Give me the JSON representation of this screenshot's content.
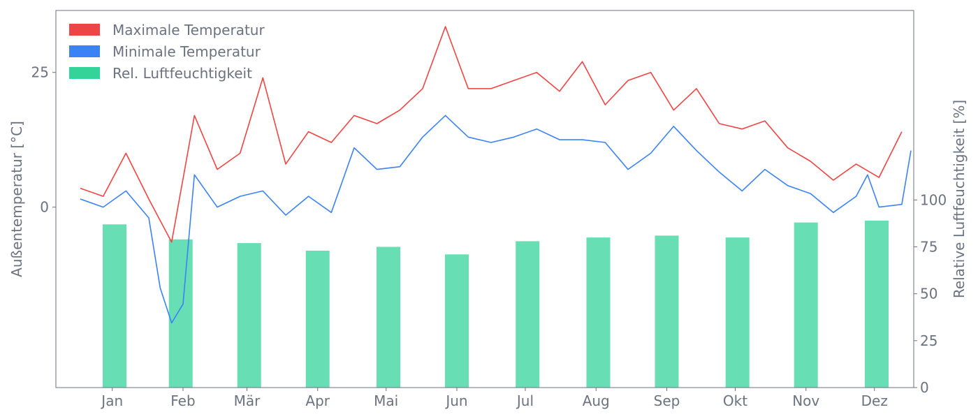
{
  "chart_data": {
    "type": "line",
    "x_type": "date",
    "x_range": [
      "2023-01-01",
      "2023-12-31"
    ],
    "month_ticks": [
      "Jan",
      "Feb",
      "Mär",
      "Apr",
      "Mai",
      "Jun",
      "Jul",
      "Aug",
      "Sep",
      "Okt",
      "Nov",
      "Dez"
    ],
    "ylabel_left": "Außentemperatur [°C]",
    "ylabel_right": "Relative Luftfeuchtigkeit [%]",
    "ylim_left": [
      -33.5,
      36.5
    ],
    "yticks_left": [
      0,
      25
    ],
    "ylim_right": [
      0,
      201
    ],
    "yticks_right": [
      0,
      25,
      50,
      75,
      100
    ],
    "grid": false,
    "legend_position": "top-left",
    "series": [
      {
        "name": "Maximale Temperatur",
        "kind": "line",
        "color": "#ef4444",
        "x": [
          "2023-01-01",
          "2023-01-11",
          "2023-01-21",
          "2023-01-31",
          "2023-02-10",
          "2023-02-20",
          "2023-03-02",
          "2023-03-12",
          "2023-03-22",
          "2023-04-01",
          "2023-04-11",
          "2023-04-21",
          "2023-05-01",
          "2023-05-11",
          "2023-05-21",
          "2023-05-31",
          "2023-06-10",
          "2023-06-20",
          "2023-06-30",
          "2023-07-10",
          "2023-07-20",
          "2023-07-30",
          "2023-08-09",
          "2023-08-19",
          "2023-08-29",
          "2023-09-08",
          "2023-09-18",
          "2023-09-28",
          "2023-10-08",
          "2023-10-18",
          "2023-10-28",
          "2023-11-07",
          "2023-11-17",
          "2023-11-27",
          "2023-12-07",
          "2023-12-17",
          "2023-12-27"
        ],
        "values": [
          3.5,
          2.0,
          10.0,
          1.5,
          -6.5,
          17.0,
          7.0,
          10.0,
          24.0,
          8.0,
          14.0,
          12.0,
          17.0,
          15.5,
          18.0,
          22.0,
          33.5,
          22.0,
          22.0,
          23.5,
          25.0,
          21.5,
          27.0,
          19.0,
          23.5,
          25.0,
          18.0,
          22.0,
          15.5,
          14.5,
          16.0,
          11.0,
          8.5,
          5.0,
          8.0,
          5.5,
          14.0
        ]
      },
      {
        "name": "Minimale Temperatur",
        "kind": "line",
        "color": "#3b82f6",
        "x": [
          "2023-01-01",
          "2023-01-11",
          "2023-01-21",
          "2023-01-31",
          "2023-02-05",
          "2023-02-10",
          "2023-02-15",
          "2023-02-20",
          "2023-03-02",
          "2023-03-12",
          "2023-03-22",
          "2023-04-01",
          "2023-04-11",
          "2023-04-21",
          "2023-05-01",
          "2023-05-11",
          "2023-05-21",
          "2023-05-31",
          "2023-06-10",
          "2023-06-20",
          "2023-06-30",
          "2023-07-10",
          "2023-07-20",
          "2023-07-30",
          "2023-08-09",
          "2023-08-19",
          "2023-08-29",
          "2023-09-08",
          "2023-09-18",
          "2023-09-28",
          "2023-10-08",
          "2023-10-18",
          "2023-10-28",
          "2023-11-07",
          "2023-11-17",
          "2023-11-27",
          "2023-12-07",
          "2023-12-12",
          "2023-12-17",
          "2023-12-27",
          "2023-12-31"
        ],
        "values": [
          1.5,
          0.0,
          3.0,
          -2.0,
          -15.0,
          -21.5,
          -18.0,
          6.0,
          0.0,
          2.0,
          3.0,
          -1.5,
          2.0,
          -1.0,
          11.0,
          7.0,
          7.5,
          13.0,
          17.0,
          13.0,
          12.0,
          13.0,
          14.5,
          12.5,
          12.5,
          12.0,
          7.0,
          10.0,
          15.0,
          10.5,
          6.5,
          3.0,
          7.0,
          4.0,
          2.5,
          -1.0,
          2.0,
          6.0,
          0.0,
          0.5,
          10.5
        ]
      },
      {
        "name": "Rel. Luftfeuchtigkeit",
        "kind": "bar",
        "color": "#34d399",
        "x": [
          "2023-01-16",
          "2023-02-14",
          "2023-03-16",
          "2023-04-15",
          "2023-05-16",
          "2023-06-15",
          "2023-07-16",
          "2023-08-16",
          "2023-09-15",
          "2023-10-16",
          "2023-11-15",
          "2023-12-16"
        ],
        "values": [
          87,
          79,
          77,
          73,
          75,
          71,
          78,
          80,
          81,
          80,
          88,
          89
        ]
      }
    ]
  }
}
